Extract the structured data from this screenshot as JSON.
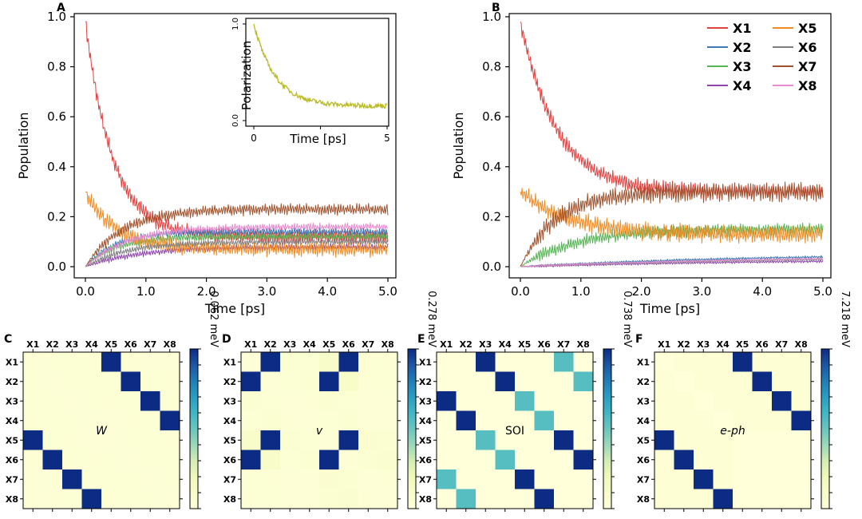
{
  "chart_data": {
    "panels_top": [
      {
        "letter": "A",
        "type": "line",
        "xlabel": "Time [ps]",
        "ylabel": "Population",
        "xlim": [
          0,
          5
        ],
        "ylim": [
          0,
          1
        ],
        "x_ticks": [
          "0.0",
          "1.0",
          "2.0",
          "3.0",
          "4.0",
          "5.0"
        ],
        "y_ticks": [
          "0.0",
          "0.2",
          "0.4",
          "0.6",
          "0.8",
          "1.0"
        ],
        "series": [
          {
            "name": "X1",
            "color": "#e0413f",
            "start": 0.98,
            "end": 0.12,
            "tau": 0.45,
            "osc": 0.025
          },
          {
            "name": "X2",
            "color": "#3b78b5",
            "start": 0.0,
            "end": 0.14,
            "tau": 0.5,
            "osc": 0.012
          },
          {
            "name": "X3",
            "color": "#55b454",
            "start": 0.0,
            "end": 0.12,
            "tau": 0.5,
            "osc": 0.012
          },
          {
            "name": "X4",
            "color": "#8e44ad",
            "start": 0.0,
            "end": 0.08,
            "tau": 0.9,
            "osc": 0.01
          },
          {
            "name": "X5",
            "color": "#f08c22",
            "start": 0.3,
            "end": 0.07,
            "tau": 0.5,
            "osc": 0.025
          },
          {
            "name": "X6",
            "color": "#7f7f7f",
            "start": 0.0,
            "end": 0.1,
            "tau": 0.7,
            "osc": 0.01
          },
          {
            "name": "X7",
            "color": "#a0522d",
            "start": 0.0,
            "end": 0.23,
            "tau": 0.6,
            "osc": 0.018
          },
          {
            "name": "X8",
            "color": "#e88ad0",
            "start": 0.0,
            "end": 0.16,
            "tau": 0.7,
            "osc": 0.012
          }
        ],
        "inset": {
          "type": "line",
          "xlabel": "Time [ps]",
          "ylabel": "Polarization",
          "xlim": [
            0,
            5
          ],
          "ylim": [
            0,
            1
          ],
          "x_ticks": [
            "0",
            "",
            "5"
          ],
          "y_ticks": [
            "0.0",
            "1.0"
          ],
          "color": "#bdbd2a",
          "start": 1.0,
          "end": 0.15,
          "tau": 0.8
        }
      },
      {
        "letter": "B",
        "type": "line",
        "xlabel": "Time [ps]",
        "ylabel": "Population",
        "xlim": [
          0,
          5
        ],
        "ylim": [
          0,
          1
        ],
        "x_ticks": [
          "0.0",
          "1.0",
          "2.0",
          "3.0",
          "4.0",
          "5.0"
        ],
        "y_ticks": [
          "0.0",
          "0.2",
          "0.4",
          "0.6",
          "0.8",
          "1.0"
        ],
        "series": [
          {
            "name": "X1",
            "color": "#e0413f",
            "start": 0.98,
            "end": 0.3,
            "tau": 0.6,
            "osc": 0.025
          },
          {
            "name": "X2",
            "color": "#3b78b5",
            "start": 0.0,
            "end": 0.055,
            "tau": 4.0,
            "osc": 0.004
          },
          {
            "name": "X3",
            "color": "#55b454",
            "start": 0.0,
            "end": 0.15,
            "tau": 0.9,
            "osc": 0.02
          },
          {
            "name": "X4",
            "color": "#8e44ad",
            "start": 0.0,
            "end": 0.03,
            "tau": 4.0,
            "osc": 0.004
          },
          {
            "name": "X5",
            "color": "#f08c22",
            "start": 0.3,
            "end": 0.13,
            "tau": 0.8,
            "osc": 0.03
          },
          {
            "name": "X6",
            "color": "#7f7f7f",
            "start": 0.0,
            "end": 0.04,
            "tau": 4.0,
            "osc": 0.003
          },
          {
            "name": "X7",
            "color": "#a0522d",
            "start": 0.0,
            "end": 0.3,
            "tau": 0.6,
            "osc": 0.03
          },
          {
            "name": "X8",
            "color": "#e88ad0",
            "start": 0.0,
            "end": 0.045,
            "tau": 4.0,
            "osc": 0.003
          }
        ],
        "legend_position": "top-right",
        "legend": [
          "X1",
          "X5",
          "X2",
          "X6",
          "X3",
          "X7",
          "X4",
          "X8"
        ]
      }
    ],
    "heatmaps": [
      {
        "letter": "C",
        "type": "heatmap",
        "label": "W",
        "label_italic": true,
        "colorbar_max": "0.062 meV",
        "rows": [
          "X1",
          "X2",
          "X3",
          "X4",
          "X5",
          "X6",
          "X7",
          "X8"
        ],
        "cols": [
          "X1",
          "X2",
          "X3",
          "X4",
          "X5",
          "X6",
          "X7",
          "X8"
        ],
        "values": [
          [
            0.02,
            0.04,
            0.04,
            0.03,
            1.0,
            0.03,
            0.02,
            0.02
          ],
          [
            0.04,
            0.02,
            0.04,
            0.04,
            0.04,
            1.0,
            0.04,
            0.03
          ],
          [
            0.04,
            0.04,
            0.02,
            0.04,
            0.03,
            0.04,
            1.0,
            0.04
          ],
          [
            0.03,
            0.04,
            0.04,
            0.02,
            0.02,
            0.03,
            0.04,
            1.0
          ],
          [
            1.0,
            0.04,
            0.03,
            0.02,
            0.02,
            0.04,
            0.04,
            0.03
          ],
          [
            0.03,
            1.0,
            0.04,
            0.03,
            0.04,
            0.02,
            0.04,
            0.04
          ],
          [
            0.02,
            0.04,
            1.0,
            0.04,
            0.04,
            0.04,
            0.02,
            0.04
          ],
          [
            0.02,
            0.03,
            0.04,
            1.0,
            0.03,
            0.04,
            0.04,
            0.02
          ]
        ]
      },
      {
        "letter": "D",
        "type": "heatmap",
        "label": "v",
        "label_italic": true,
        "colorbar_max": "0.278 meV",
        "rows": [
          "X1",
          "X2",
          "X3",
          "X4",
          "X5",
          "X6",
          "X7",
          "X8"
        ],
        "cols": [
          "X1",
          "X2",
          "X3",
          "X4",
          "X5",
          "X6",
          "X7",
          "X8"
        ],
        "values": [
          [
            0.02,
            1.0,
            0.05,
            0.04,
            0.1,
            1.0,
            0.04,
            0.03
          ],
          [
            1.0,
            0.02,
            0.04,
            0.05,
            1.0,
            0.1,
            0.03,
            0.04
          ],
          [
            0.05,
            0.04,
            0.02,
            0.03,
            0.05,
            0.04,
            0.02,
            0.02
          ],
          [
            0.04,
            0.05,
            0.03,
            0.02,
            0.04,
            0.05,
            0.02,
            0.02
          ],
          [
            0.1,
            1.0,
            0.05,
            0.04,
            0.02,
            1.0,
            0.06,
            0.05
          ],
          [
            1.0,
            0.1,
            0.04,
            0.05,
            1.0,
            0.02,
            0.05,
            0.07
          ],
          [
            0.04,
            0.03,
            0.02,
            0.02,
            0.06,
            0.05,
            0.02,
            0.03
          ],
          [
            0.03,
            0.04,
            0.02,
            0.02,
            0.05,
            0.07,
            0.03,
            0.02
          ]
        ]
      },
      {
        "letter": "E",
        "type": "heatmap",
        "label": "SOI",
        "label_italic": false,
        "colorbar_max": "0.738 meV",
        "rows": [
          "X1",
          "X2",
          "X3",
          "X4",
          "X5",
          "X6",
          "X7",
          "X8"
        ],
        "cols": [
          "X1",
          "X2",
          "X3",
          "X4",
          "X5",
          "X6",
          "X7",
          "X8"
        ],
        "values": [
          [
            0,
            0,
            1.0,
            0,
            0,
            0,
            0.55,
            0
          ],
          [
            0,
            0,
            0,
            1.0,
            0,
            0,
            0,
            0.55
          ],
          [
            1.0,
            0,
            0,
            0,
            0.55,
            0,
            0,
            0
          ],
          [
            0,
            1.0,
            0,
            0,
            0,
            0.55,
            0,
            0
          ],
          [
            0,
            0,
            0.55,
            0,
            0,
            0,
            1.0,
            0
          ],
          [
            0,
            0,
            0,
            0.55,
            0,
            0,
            0,
            1.0
          ],
          [
            0.55,
            0,
            0,
            0,
            1.0,
            0,
            0,
            0
          ],
          [
            0,
            0.55,
            0,
            0,
            0,
            1.0,
            0,
            0
          ]
        ]
      },
      {
        "letter": "F",
        "type": "heatmap",
        "label": "e-ph",
        "label_italic": true,
        "colorbar_max": "7.218 meV",
        "rows": [
          "X1",
          "X2",
          "X3",
          "X4",
          "X5",
          "X6",
          "X7",
          "X8"
        ],
        "cols": [
          "X1",
          "X2",
          "X3",
          "X4",
          "X5",
          "X6",
          "X7",
          "X8"
        ],
        "values": [
          [
            0,
            0.03,
            0.03,
            0.03,
            1.0,
            0.03,
            0.03,
            0.03
          ],
          [
            0.03,
            0,
            0.03,
            0.03,
            0.03,
            1.0,
            0.03,
            0.03
          ],
          [
            0.03,
            0.03,
            0,
            0.03,
            0.03,
            0.03,
            1.0,
            0.03
          ],
          [
            0.03,
            0.03,
            0.03,
            0,
            0.03,
            0.03,
            0.03,
            1.0
          ],
          [
            1.0,
            0.03,
            0.03,
            0.03,
            0,
            0,
            0,
            0
          ],
          [
            0.03,
            1.0,
            0.03,
            0.03,
            0,
            0,
            0,
            0
          ],
          [
            0.03,
            0.03,
            1.0,
            0.03,
            0,
            0,
            0,
            0
          ],
          [
            0.03,
            0.03,
            0.03,
            1.0,
            0,
            0,
            0,
            0
          ]
        ]
      }
    ]
  }
}
